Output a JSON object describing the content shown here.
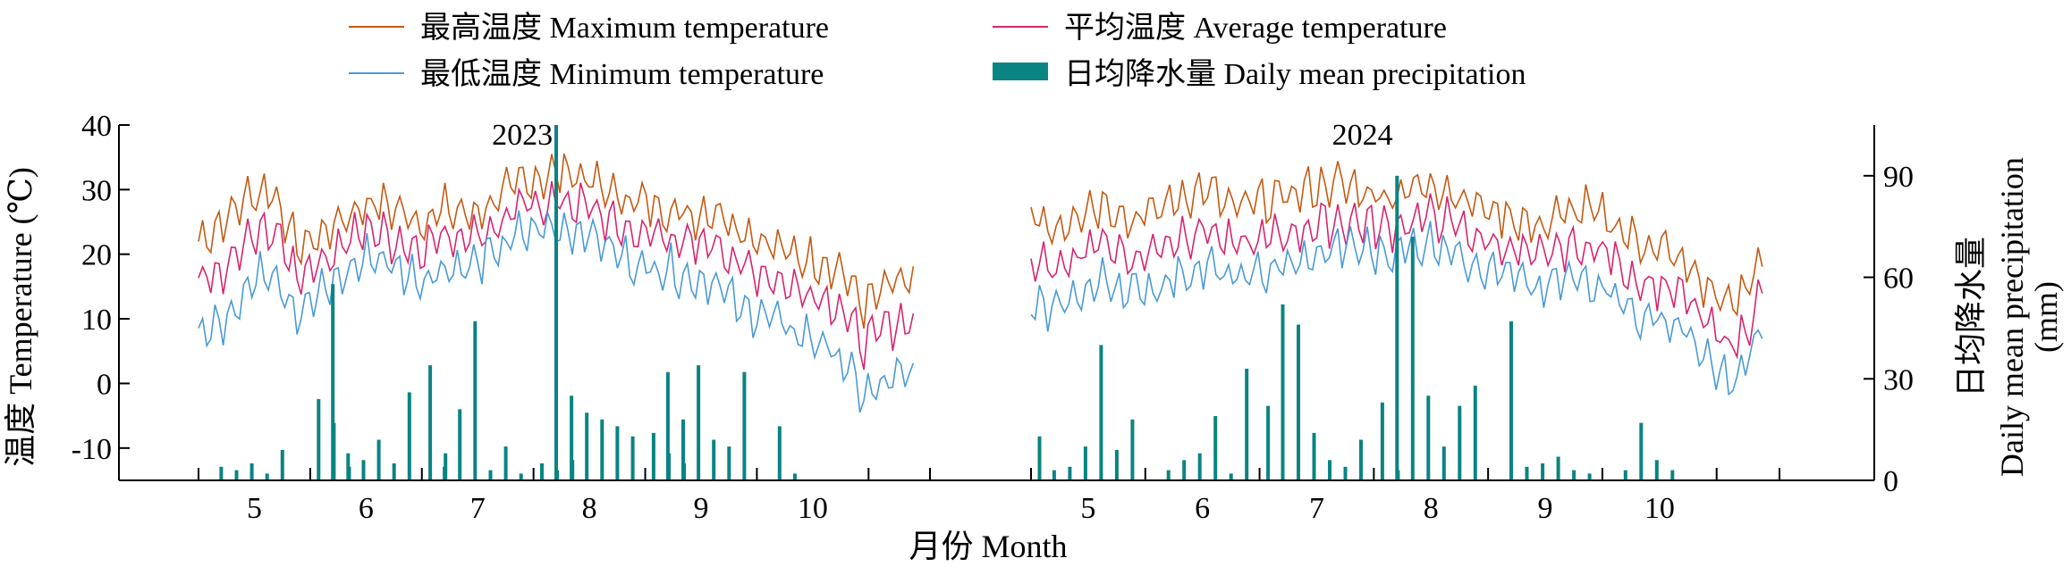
{
  "chart_data": {
    "type": "line",
    "legend": {
      "placement": "top",
      "entries": [
        {
          "key": "max",
          "label": "最高温度 Maximum temperature",
          "color": "#c45a12",
          "kind": "line"
        },
        {
          "key": "avg",
          "label": "平均温度 Average temperature",
          "color": "#d6256f",
          "kind": "line"
        },
        {
          "key": "min",
          "label": "最低温度 Minimum temperature",
          "color": "#4a9ad6",
          "kind": "line"
        },
        {
          "key": "precip",
          "label": "日均降水量 Daily mean precipitation",
          "color": "#0a8482",
          "kind": "bar"
        }
      ]
    },
    "xlabel": "月份 Month",
    "ylabel_left": "温度 Temperature (℃)",
    "ylabel_right_line1": "日均降水量",
    "ylabel_right_line2": "Daily mean precipitation",
    "ylabel_right_line3": "(mm)",
    "ylim_left": [
      -15,
      40
    ],
    "yticks_left": [
      -10,
      0,
      10,
      20,
      30,
      40
    ],
    "ylim_right": [
      0,
      105
    ],
    "yticks_right": [
      0,
      30,
      60,
      90
    ],
    "panels": [
      {
        "year": "2023",
        "months": [
          "5",
          "6",
          "7",
          "8",
          "9",
          "10"
        ],
        "temperature_weekly": {
          "max": [
            22,
            25,
            29,
            30,
            21,
            23,
            26,
            28,
            27,
            25,
            27,
            26,
            28,
            31,
            32,
            33,
            31,
            29,
            28,
            27,
            26,
            27,
            24,
            22,
            20,
            19,
            18,
            12,
            15,
            16
          ],
          "avg": [
            15,
            17,
            22,
            24,
            17,
            19,
            22,
            24,
            22,
            21,
            23,
            23,
            24,
            27,
            28,
            28,
            27,
            24,
            23,
            23,
            21,
            22,
            18,
            17,
            15,
            14,
            12,
            6,
            9,
            10
          ],
          "min": [
            7,
            10,
            15,
            18,
            11,
            14,
            17,
            20,
            18,
            16,
            18,
            18,
            20,
            23,
            24,
            24,
            23,
            20,
            18,
            18,
            16,
            16,
            11,
            11,
            8,
            7,
            4,
            -2,
            0,
            2
          ]
        },
        "precipitation_events": [
          {
            "month": 5,
            "mm": 4
          },
          {
            "month": 5,
            "mm": 3
          },
          {
            "month": 5,
            "mm": 5
          },
          {
            "month": 5,
            "mm": 2
          },
          {
            "month": 5,
            "mm": 9
          },
          {
            "month": 6,
            "mm": 58
          },
          {
            "month": 6,
            "mm": 8
          },
          {
            "month": 6,
            "mm": 6
          },
          {
            "month": 6,
            "mm": 12
          },
          {
            "month": 6,
            "mm": 5
          },
          {
            "month": 6,
            "mm": 26
          },
          {
            "month": 6,
            "mm": 24
          },
          {
            "month": 6,
            "mm": 17
          },
          {
            "month": 6,
            "mm": 4
          },
          {
            "month": 7,
            "mm": 4
          },
          {
            "month": 7,
            "mm": 21
          },
          {
            "month": 7,
            "mm": 47
          },
          {
            "month": 7,
            "mm": 3
          },
          {
            "month": 7,
            "mm": 10
          },
          {
            "month": 7,
            "mm": 2
          },
          {
            "month": 7,
            "mm": 34
          },
          {
            "month": 7,
            "mm": 8
          },
          {
            "month": 8,
            "mm": 105
          },
          {
            "month": 8,
            "mm": 25
          },
          {
            "month": 8,
            "mm": 20
          },
          {
            "month": 8,
            "mm": 18
          },
          {
            "month": 8,
            "mm": 16
          },
          {
            "month": 8,
            "mm": 13
          },
          {
            "month": 8,
            "mm": 5
          },
          {
            "month": 8,
            "mm": 3
          },
          {
            "month": 8,
            "mm": 6
          },
          {
            "month": 9,
            "mm": 32
          },
          {
            "month": 9,
            "mm": 18
          },
          {
            "month": 9,
            "mm": 34
          },
          {
            "month": 9,
            "mm": 12
          },
          {
            "month": 9,
            "mm": 10
          },
          {
            "month": 9,
            "mm": 32
          },
          {
            "month": 9,
            "mm": 14
          },
          {
            "month": 9,
            "mm": 8
          },
          {
            "month": 9,
            "mm": 5
          },
          {
            "month": 10,
            "mm": 16
          },
          {
            "month": 10,
            "mm": 2
          }
        ]
      },
      {
        "year": "2024",
        "months": [
          "5",
          "6",
          "7",
          "8",
          "9",
          "10"
        ],
        "temperature_weekly": {
          "max": [
            26,
            24,
            27,
            28,
            25,
            27,
            29,
            30,
            27,
            28,
            29,
            30,
            31,
            30,
            29,
            30,
            31,
            29,
            27,
            26,
            24,
            26,
            27,
            25,
            22,
            21,
            18,
            14,
            12,
            20
          ],
          "avg": [
            19,
            17,
            21,
            22,
            19,
            21,
            23,
            24,
            21,
            22,
            23,
            24,
            25,
            25,
            24,
            25,
            26,
            24,
            22,
            21,
            19,
            21,
            21,
            20,
            16,
            15,
            13,
            8,
            6,
            14
          ],
          "min": [
            12,
            11,
            14,
            16,
            14,
            15,
            17,
            18,
            16,
            17,
            18,
            19,
            21,
            21,
            20,
            21,
            22,
            20,
            18,
            17,
            14,
            16,
            16,
            15,
            10,
            10,
            8,
            2,
            0,
            9
          ]
        },
        "precipitation_events": [
          {
            "month": 5,
            "mm": 3
          },
          {
            "month": 5,
            "mm": 4
          },
          {
            "month": 5,
            "mm": 10
          },
          {
            "month": 5,
            "mm": 40
          },
          {
            "month": 5,
            "mm": 9
          },
          {
            "month": 5,
            "mm": 18
          },
          {
            "month": 5,
            "mm": 13
          },
          {
            "month": 6,
            "mm": 3
          },
          {
            "month": 6,
            "mm": 6
          },
          {
            "month": 6,
            "mm": 8
          },
          {
            "month": 6,
            "mm": 19
          },
          {
            "month": 6,
            "mm": 2
          },
          {
            "month": 6,
            "mm": 33
          },
          {
            "month": 7,
            "mm": 52
          },
          {
            "month": 7,
            "mm": 46
          },
          {
            "month": 7,
            "mm": 14
          },
          {
            "month": 7,
            "mm": 6
          },
          {
            "month": 7,
            "mm": 4
          },
          {
            "month": 7,
            "mm": 12
          },
          {
            "month": 7,
            "mm": 22
          },
          {
            "month": 8,
            "mm": 90
          },
          {
            "month": 8,
            "mm": 72
          },
          {
            "month": 8,
            "mm": 25
          },
          {
            "month": 8,
            "mm": 10
          },
          {
            "month": 8,
            "mm": 22
          },
          {
            "month": 8,
            "mm": 28
          },
          {
            "month": 8,
            "mm": 23
          },
          {
            "month": 8,
            "mm": 3
          },
          {
            "month": 9,
            "mm": 47
          },
          {
            "month": 9,
            "mm": 4
          },
          {
            "month": 9,
            "mm": 5
          },
          {
            "month": 9,
            "mm": 7
          },
          {
            "month": 9,
            "mm": 3
          },
          {
            "month": 9,
            "mm": 2
          },
          {
            "month": 10,
            "mm": 3
          },
          {
            "month": 10,
            "mm": 17
          },
          {
            "month": 10,
            "mm": 6
          },
          {
            "month": 10,
            "mm": 3
          }
        ]
      }
    ]
  }
}
